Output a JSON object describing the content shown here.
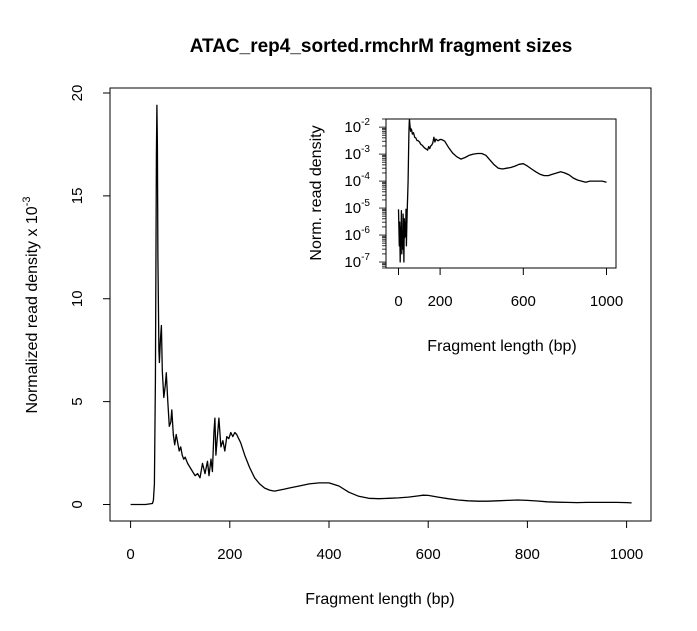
{
  "chart_data": [
    {
      "type": "line",
      "title": "ATAC_rep4_sorted.rmchrM fragment sizes",
      "xlabel": "Fragment length (bp)",
      "ylabel": "Normalized read density x 10",
      "ylabel_exponent": "-3",
      "xlim": [
        0,
        1010
      ],
      "ylim": [
        0,
        20
      ],
      "xticks": [
        0,
        200,
        400,
        600,
        800,
        1000
      ],
      "yticks": [
        0,
        5,
        10,
        15,
        20
      ],
      "series": [
        {
          "x": [
            0,
            30,
            44,
            46,
            48,
            50,
            52,
            53,
            54,
            55,
            57,
            58,
            60,
            62,
            64,
            67,
            70,
            72,
            75,
            78,
            81,
            83,
            86,
            89,
            92,
            95,
            98,
            101,
            104,
            107,
            110,
            115,
            120,
            125,
            130,
            135,
            140,
            145,
            150,
            155,
            158,
            162,
            165,
            168,
            170,
            172,
            175,
            178,
            182,
            186,
            190,
            194,
            198,
            202,
            206,
            210,
            214,
            218,
            222,
            230,
            240,
            250,
            260,
            270,
            280,
            290,
            300,
            310,
            320,
            340,
            360,
            380,
            400,
            420,
            440,
            460,
            480,
            500,
            520,
            540,
            560,
            580,
            590,
            600,
            620,
            640,
            660,
            680,
            700,
            720,
            740,
            760,
            780,
            800,
            820,
            840,
            860,
            880,
            900,
            920,
            940,
            960,
            980,
            1000,
            1010
          ],
          "y": [
            0.0,
            0.0,
            0.05,
            0.2,
            1.0,
            6.0,
            17.0,
            19.4,
            17.5,
            12.0,
            7.5,
            6.9,
            8.0,
            8.7,
            6.5,
            5.2,
            5.8,
            6.4,
            5.0,
            3.8,
            4.0,
            4.6,
            3.4,
            2.9,
            3.4,
            3.0,
            2.6,
            2.8,
            2.4,
            2.2,
            2.3,
            2.0,
            1.8,
            1.6,
            1.4,
            1.5,
            1.3,
            2.0,
            1.5,
            2.1,
            1.4,
            2.2,
            1.6,
            3.5,
            4.2,
            2.4,
            3.3,
            4.2,
            2.8,
            3.1,
            2.6,
            3.3,
            3.2,
            3.5,
            3.3,
            3.5,
            3.4,
            3.2,
            3.0,
            2.4,
            1.8,
            1.3,
            1.0,
            0.8,
            0.7,
            0.65,
            0.7,
            0.75,
            0.8,
            0.9,
            1.0,
            1.05,
            1.05,
            0.9,
            0.6,
            0.4,
            0.3,
            0.28,
            0.3,
            0.32,
            0.36,
            0.42,
            0.45,
            0.44,
            0.36,
            0.28,
            0.22,
            0.18,
            0.16,
            0.16,
            0.18,
            0.2,
            0.22,
            0.2,
            0.17,
            0.13,
            0.11,
            0.1,
            0.09,
            0.1,
            0.1,
            0.1,
            0.1,
            0.09,
            0.08
          ]
        }
      ]
    },
    {
      "type": "line",
      "title": "",
      "xlabel": "Fragment length (bp)",
      "ylabel": "Norm. read density",
      "log_y": true,
      "xlim": [
        0,
        1010
      ],
      "ylim": [
        6e-08,
        0.02
      ],
      "xticks": [
        0,
        200,
        600,
        1000
      ],
      "yticks": [
        {
          "base": "10",
          "exp": "-2",
          "value": 0.01
        },
        {
          "base": "10",
          "exp": "-3",
          "value": 0.001
        },
        {
          "base": "10",
          "exp": "-4",
          "value": 0.0001
        },
        {
          "base": "10",
          "exp": "-5",
          "value": 1e-05
        },
        {
          "base": "10",
          "exp": "-6",
          "value": 1e-06
        },
        {
          "base": "10",
          "exp": "-7",
          "value": 1e-07
        }
      ],
      "series": [
        {
          "x": [
            0,
            4,
            6,
            8,
            10,
            12,
            14,
            16,
            18,
            20,
            22,
            24,
            26,
            28,
            30,
            32,
            34,
            36,
            38,
            40,
            42,
            44,
            46,
            48,
            50,
            52,
            53,
            55,
            58,
            62,
            67,
            72,
            78,
            83,
            89,
            95,
            101,
            107,
            115,
            125,
            135,
            140,
            145,
            150,
            155,
            160,
            165,
            170,
            175,
            180,
            190,
            200,
            210,
            222,
            240,
            260,
            280,
            300,
            320,
            340,
            360,
            380,
            400,
            420,
            440,
            460,
            480,
            500,
            520,
            540,
            560,
            580,
            600,
            620,
            640,
            660,
            680,
            700,
            720,
            740,
            760,
            780,
            800,
            820,
            840,
            860,
            880,
            900,
            920,
            940,
            960,
            980,
            1000
          ],
          "y": [
            9e-06,
            4e-07,
            3e-06,
            1e-07,
            2e-06,
            6e-07,
            8e-06,
            2e-07,
            1e-06,
            3e-07,
            6e-06,
            2e-06,
            1e-07,
            4e-06,
            8e-07,
            3e-06,
            9e-07,
            9e-06,
            4e-07,
            2e-06,
            8e-06,
            3e-05,
            0.0001,
            0.0008,
            0.006,
            0.017,
            0.0194,
            0.012,
            0.007,
            0.0085,
            0.0055,
            0.0062,
            0.0042,
            0.004,
            0.0032,
            0.0031,
            0.0028,
            0.0023,
            0.0021,
            0.0017,
            0.0015,
            0.0014,
            0.0019,
            0.0016,
            0.002,
            0.0022,
            0.0026,
            0.0042,
            0.0028,
            0.0036,
            0.0031,
            0.0035,
            0.0034,
            0.003,
            0.0018,
            0.0011,
            0.0008,
            0.00065,
            0.00075,
            0.0009,
            0.001,
            0.00105,
            0.00105,
            0.0009,
            0.0006,
            0.0004,
            0.0003,
            0.00028,
            0.0003,
            0.00032,
            0.00036,
            0.00042,
            0.00044,
            0.00036,
            0.00028,
            0.00022,
            0.00018,
            0.00016,
            0.00016,
            0.00018,
            0.0002,
            0.00022,
            0.0002,
            0.00017,
            0.00013,
            0.00011,
            0.0001,
            9e-05,
            0.0001,
            0.0001,
            0.0001,
            0.0001,
            9e-05
          ]
        }
      ]
    }
  ]
}
